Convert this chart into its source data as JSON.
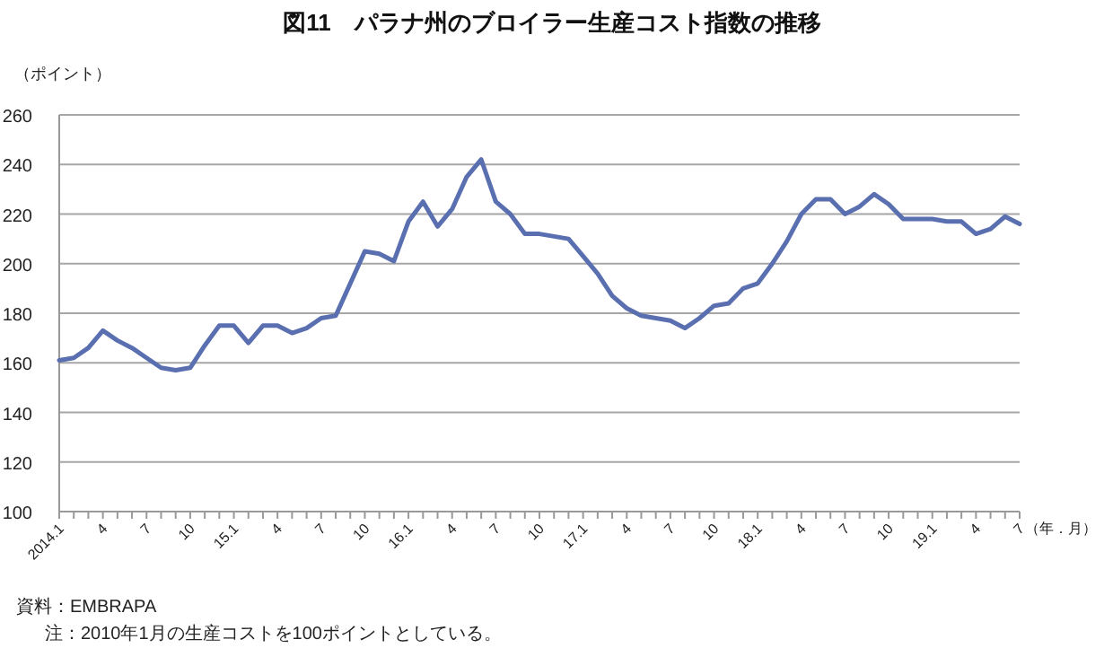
{
  "chart_data": {
    "type": "line",
    "title": "図11　パラナ州のブロイラー生産コスト指数の推移",
    "ylabel": "（ポイント）",
    "xlabel": "（年．月）",
    "categories": [
      "2014.1",
      null,
      null,
      "4",
      null,
      null,
      "7",
      null,
      null,
      "10",
      null,
      null,
      "15.1",
      null,
      null,
      "4",
      null,
      null,
      "7",
      null,
      null,
      "10",
      null,
      null,
      "16.1",
      null,
      null,
      "4",
      null,
      null,
      "7",
      null,
      null,
      "10",
      null,
      null,
      "17.1",
      null,
      null,
      "4",
      null,
      null,
      "7",
      null,
      null,
      "10",
      null,
      null,
      "18.1",
      null,
      null,
      "4",
      null,
      null,
      "7",
      null,
      null,
      "10",
      null,
      null,
      "19.1",
      null,
      null,
      "4",
      null,
      null,
      "7"
    ],
    "series": [
      {
        "color": "#5a6fb0",
        "values": [
          161,
          162,
          166,
          173,
          169,
          166,
          162,
          158,
          157,
          158,
          167,
          175,
          175,
          168,
          175,
          175,
          172,
          174,
          178,
          179,
          192,
          205,
          204,
          201,
          217,
          225,
          215,
          222,
          235,
          242,
          225,
          220,
          212,
          212,
          211,
          210,
          203,
          196,
          187,
          182,
          179,
          178,
          177,
          174,
          178,
          183,
          184,
          190,
          192,
          200,
          209,
          220,
          226,
          226,
          220,
          223,
          228,
          224,
          218,
          218,
          218,
          217,
          217,
          212,
          214,
          219,
          216
        ]
      }
    ],
    "ylim": [
      100,
      260
    ],
    "yticks": [
      100,
      120,
      140,
      160,
      180,
      200,
      220,
      240,
      260
    ],
    "grid": "y",
    "marker": "none",
    "line_style": "solid",
    "annotations": [
      "資料：EMBRAPA",
      "注：2010年1月の生産コストを100ポイントとしている。"
    ]
  }
}
